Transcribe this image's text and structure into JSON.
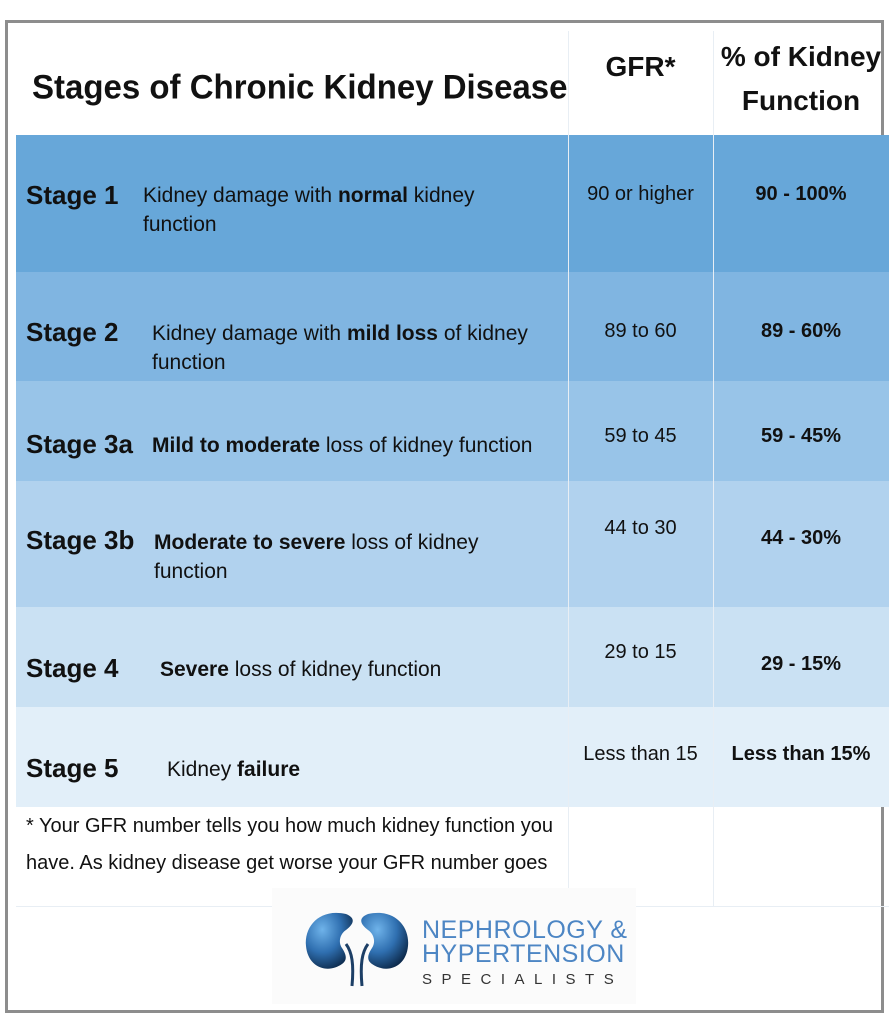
{
  "header": {
    "title": "Stages of Chronic Kidney Disease",
    "gfr": "GFR*",
    "pct": "% of Kidney\nFunction"
  },
  "rows": [
    {
      "stage": "Stage 1",
      "desc_pre": "Kidney damage with ",
      "desc_bold": "normal",
      "desc_post": " kidney function",
      "gfr": "90 or higher",
      "pct": "90 -  100%",
      "bg": "#67a7d9"
    },
    {
      "stage": "Stage 2",
      "desc_pre": "Kidney damage with ",
      "desc_bold": "mild loss",
      "desc_post": " of kidney function",
      "gfr": "89 to 60",
      "pct": "89 - 60%",
      "bg": "#80b5e1"
    },
    {
      "stage": "Stage 3a",
      "desc_pre": "",
      "desc_bold": "Mild to moderate",
      "desc_post": " loss of kidney function",
      "gfr": "59 to 45",
      "pct": "59 -  45%",
      "bg": "#98c4e8"
    },
    {
      "stage": "Stage 3b",
      "desc_pre": "",
      "desc_bold": "Moderate to severe",
      "desc_post": " loss of kidney function",
      "gfr": "44 to 30",
      "pct": "44 -  30%",
      "bg": "#b1d2ee"
    },
    {
      "stage": "Stage 4",
      "desc_pre": "",
      "desc_bold": "Severe",
      "desc_post": " loss of kidney function",
      "gfr": "29 to 15",
      "pct": "29 -  15%",
      "bg": "#cae1f3"
    },
    {
      "stage": "Stage 5",
      "desc_pre": "Kidney ",
      "desc_bold": "failure",
      "desc_post": "",
      "gfr": "Less than 15",
      "pct": "Less than 15%",
      "bg": "#e2eff9"
    }
  ],
  "footnote": "* Your GFR number tells you how much kidney function you have. As kidney disease get worse your GFR number goes",
  "logo": {
    "line1": "NEPHROLOGY &",
    "line2": "HYPERTENSION",
    "line3": "SPECIALISTS",
    "color": "#4d86c4"
  }
}
